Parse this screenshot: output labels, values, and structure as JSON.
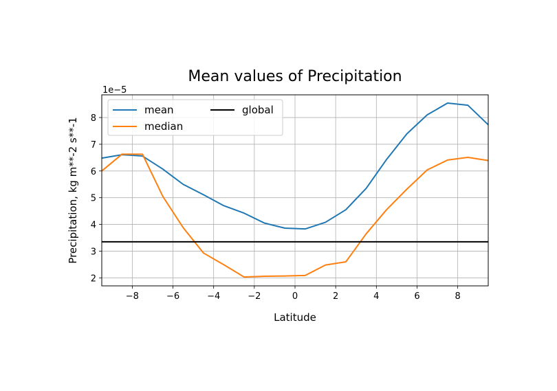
{
  "chart_data": {
    "type": "line",
    "title": "Mean values of Precipitation",
    "xlabel": "Latitude",
    "ylabel": "Precipitation, kg m**-2 s**-1",
    "offset_label": "1e−5",
    "xlim": [
      -9.5,
      9.5
    ],
    "ylim": [
      1.7,
      8.85
    ],
    "xticks": [
      -8,
      -6,
      -4,
      -2,
      0,
      2,
      4,
      6,
      8
    ],
    "xtick_labels": [
      "−8",
      "−6",
      "−4",
      "−2",
      "0",
      "2",
      "4",
      "6",
      "8"
    ],
    "yticks": [
      2,
      3,
      4,
      5,
      6,
      7,
      8
    ],
    "ytick_labels": [
      "2",
      "3",
      "4",
      "5",
      "6",
      "7",
      "8"
    ],
    "grid": true,
    "legend": "upper-left",
    "x": [
      -9.5,
      -8.5,
      -7.5,
      -6.5,
      -5.5,
      -4.5,
      -3.5,
      -2.5,
      -1.5,
      -0.5,
      0.5,
      1.5,
      2.5,
      3.5,
      4.5,
      5.5,
      6.5,
      7.5,
      8.5,
      9.5
    ],
    "series": [
      {
        "name": "mean",
        "color": "#1f77b4",
        "values": [
          6.48,
          6.61,
          6.56,
          6.07,
          5.5,
          5.11,
          4.7,
          4.42,
          4.05,
          3.86,
          3.83,
          4.08,
          4.55,
          5.35,
          6.43,
          7.39,
          8.1,
          8.54,
          8.46,
          7.73
        ]
      },
      {
        "name": "median",
        "color": "#ff7f0e",
        "values": [
          6.0,
          6.63,
          6.63,
          5.05,
          3.88,
          2.93,
          2.49,
          2.03,
          2.06,
          2.07,
          2.09,
          2.48,
          2.6,
          3.65,
          4.55,
          5.32,
          6.04,
          6.41,
          6.51,
          6.39
        ]
      },
      {
        "name": "global",
        "color": "#000000",
        "constant": 3.35
      }
    ]
  }
}
